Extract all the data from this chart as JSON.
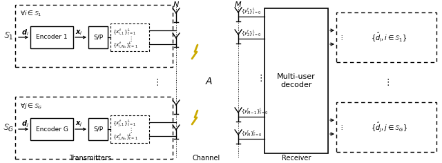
{
  "fig_width": 6.4,
  "fig_height": 2.36,
  "dpi": 100,
  "bg_color": "#ffffff",
  "transmitter_label_top": "$\\mathbb{S}_1$",
  "transmitter_label_bot": "$\\mathbb{S}_G$",
  "encoder1_label": "Encoder 1",
  "encoderG_label": "Encoder G",
  "sp_label": "S/P",
  "channel_label": "$A$",
  "decoder_label": "Multi-user\ndecoder",
  "transmitters_caption": "Transmitters",
  "channel_caption": "Channel",
  "receiver_caption": "Receiver",
  "forall_i_label": "$\\forall i \\in \\mathbb{S}_1$",
  "forall_j_label": "$\\forall j \\in \\mathbb{S}_G$",
  "di_label": "$\\boldsymbol{d}_i$",
  "dj_label": "$\\boldsymbol{d}_j$",
  "xi_label": "$\\boldsymbol{x}_i$",
  "xj_label": "$\\boldsymbol{x}_j$",
  "xi1_label": "$\\{x_{i,1}^t\\}_{t=1}^L$",
  "xiNu_label": "$\\{x_{i,N_u}^t\\}_{t=1}^L$",
  "xj1_label": "$\\{x_{j,1}^t\\}_{t=1}^L$",
  "xjNu_label": "$\\{x_{j,N_u}^t\\}_{t=1}^L$",
  "y1_label": "$\\{y_1^t\\}_{t=0}^L$",
  "y2_label": "$\\{y_2^t\\}_{t=0}^L$",
  "yM1_label": "$\\{y_{M-1}^t\\}_{t=0}^L$",
  "yM_label": "$\\{y_M^t\\}_{t=0}^L$",
  "N_label": "$N$",
  "M_label": "$M$",
  "out1_label": "$\\{\\hat{d}_i,i\\in\\mathbb{S}_1\\}$",
  "outG_label": "$\\{\\hat{d}_j,j\\in\\mathbb{S}_G\\}$",
  "dots": "$\\vdots$",
  "box_color": "#000000",
  "dashed_color": "#000000",
  "arrow_color": "#000000",
  "lightning_color": "#ccaa00"
}
